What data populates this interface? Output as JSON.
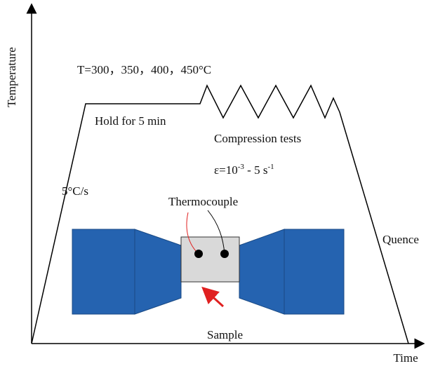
{
  "axes": {
    "y_label": "Temperature",
    "x_label": "Time"
  },
  "annotations": {
    "temperatures": "T=300，350，400，450°C",
    "hold": "Hold for 5 min",
    "compression": "Compression tests",
    "strain_rate": {
      "base": "ε=10",
      "exp1": "-3",
      "middle": " - 5 s",
      "exp2": "-1"
    },
    "heating_rate": "5°C/s",
    "thermocouple": "Thermocouple",
    "quench": "Quence",
    "sample": "Sample"
  }
}
